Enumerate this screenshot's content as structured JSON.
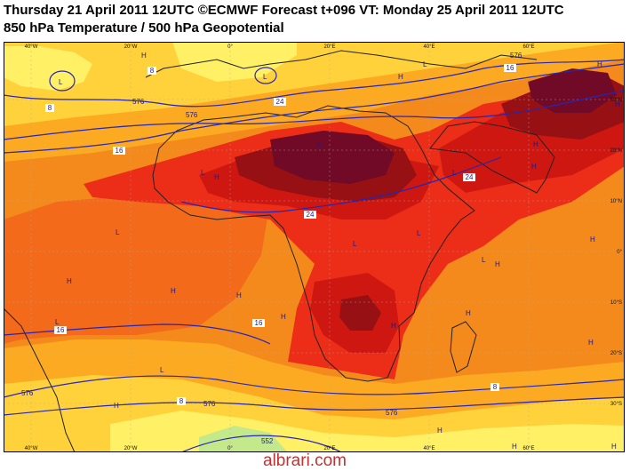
{
  "header": {
    "line1": "Thursday 21 April 2011 12UTC ©ECMWF Forecast t+096 VT: Monday 25 April 2011 12UTC",
    "line2": "850 hPa Temperature / 500 hPa Geopotential"
  },
  "colors": {
    "c0": "#fff066",
    "c4": "#ffd23c",
    "c8": "#fbaa22",
    "c12": "#f58a1c",
    "c16": "#f36a1a",
    "c20": "#ec2d17",
    "c24": "#cf1712",
    "c28": "#961014",
    "c32": "#700a27",
    "cold": "#c4e98a",
    "contour": "#2626b4",
    "coast": "#222222",
    "grid": "#aaaaaa"
  },
  "axes": {
    "lon_labels": [
      "40°W",
      "20°W",
      "0°",
      "20°E",
      "40°E",
      "60°E"
    ],
    "lat_labels": [
      "30°N",
      "20°N",
      "10°N",
      "0°",
      "10°S",
      "20°S",
      "30°S"
    ]
  },
  "contour_labels": [
    "8",
    "16",
    "24",
    "24",
    "16",
    "16",
    "24",
    "16",
    "8",
    "8",
    "8"
  ],
  "geopotential_labels": [
    "576",
    "576",
    "576",
    "576",
    "576",
    "552",
    "576"
  ],
  "pressure_marks": [
    "L",
    "L",
    "L",
    "L",
    "L",
    "L",
    "L",
    "L",
    "L",
    "L",
    "L",
    "L",
    "H",
    "H",
    "H",
    "H",
    "H",
    "H",
    "H",
    "H",
    "H",
    "H",
    "H",
    "H",
    "H",
    "H",
    "H",
    "H",
    "H",
    "H",
    "H",
    "H"
  ],
  "watermark": "albrari.com"
}
